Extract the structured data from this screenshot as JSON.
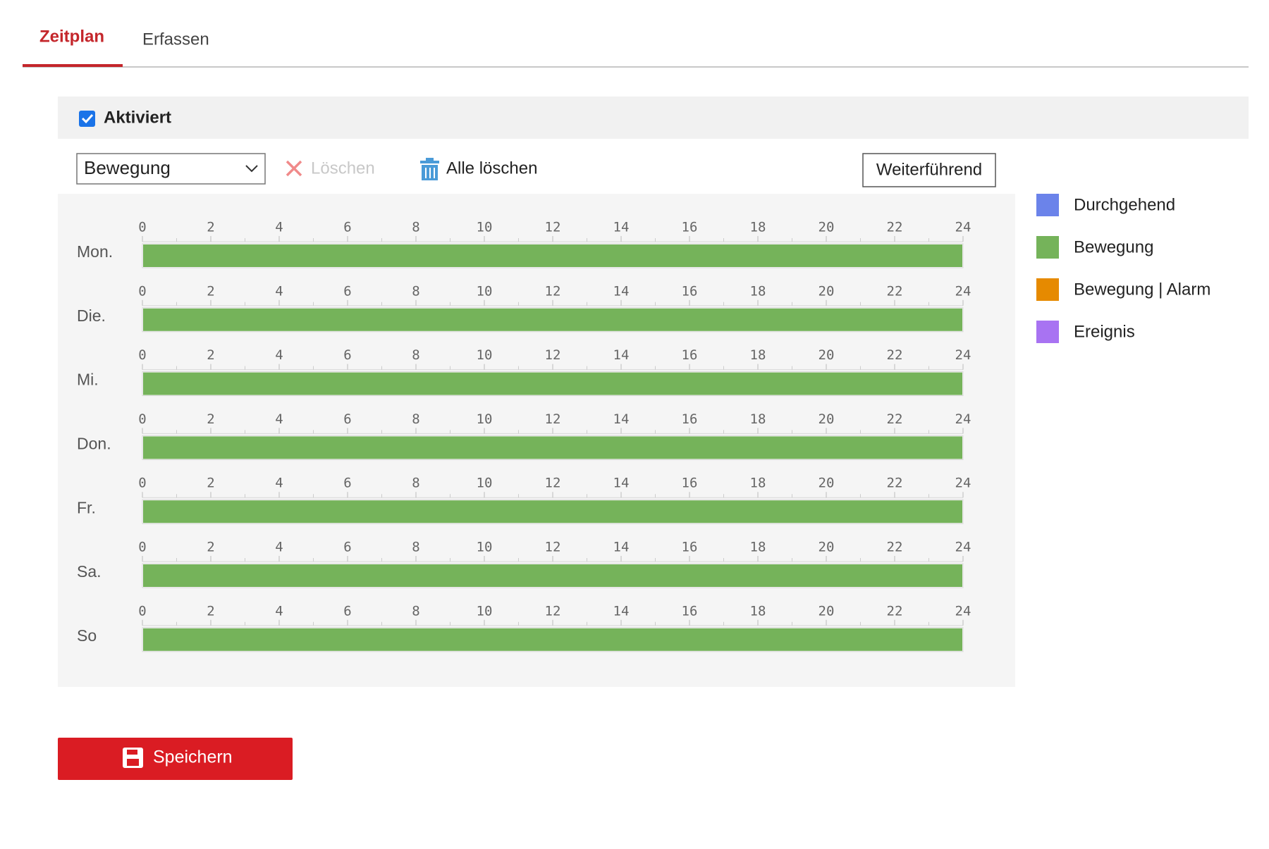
{
  "tabs": [
    {
      "label": "Zeitplan",
      "active": true
    },
    {
      "label": "Erfassen",
      "active": false
    }
  ],
  "enable": {
    "label": "Aktiviert",
    "checked": true
  },
  "toolbar": {
    "select": "Bewegung",
    "delete": "Löschen",
    "delete_all": "Alle löschen",
    "advanced": "Weiterführend"
  },
  "hours": [
    0,
    2,
    4,
    6,
    8,
    10,
    12,
    14,
    16,
    18,
    20,
    22,
    24
  ],
  "days": [
    {
      "label": "Mon.",
      "segments": [
        {
          "start": 0,
          "end": 24,
          "color": "#75b35a"
        }
      ]
    },
    {
      "label": "Die.",
      "segments": [
        {
          "start": 0,
          "end": 24,
          "color": "#75b35a"
        }
      ]
    },
    {
      "label": "Mi.",
      "segments": [
        {
          "start": 0,
          "end": 24,
          "color": "#75b35a"
        }
      ]
    },
    {
      "label": "Don.",
      "segments": [
        {
          "start": 0,
          "end": 24,
          "color": "#75b35a"
        }
      ]
    },
    {
      "label": "Fr.",
      "segments": [
        {
          "start": 0,
          "end": 24,
          "color": "#75b35a"
        }
      ]
    },
    {
      "label": "Sa.",
      "segments": [
        {
          "start": 0,
          "end": 24,
          "color": "#75b35a"
        }
      ]
    },
    {
      "label": "So",
      "segments": [
        {
          "start": 0,
          "end": 24,
          "color": "#75b35a"
        }
      ]
    }
  ],
  "legend": [
    {
      "label": "Durchgehend",
      "color": "#6b83ea"
    },
    {
      "label": "Bewegung",
      "color": "#75b35a"
    },
    {
      "label": "Bewegung | Alarm",
      "color": "#e68a00"
    },
    {
      "label": "Ereignis",
      "color": "#a873f2"
    }
  ],
  "save": "Speichern"
}
